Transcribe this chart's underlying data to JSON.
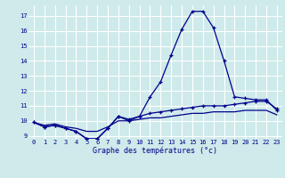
{
  "xlabel": "Graphe des températures (°c)",
  "bg_color": "#ceeaea",
  "grid_color": "#b8d8d8",
  "line_color": "#00008b",
  "hours": [
    0,
    1,
    2,
    3,
    4,
    5,
    6,
    7,
    8,
    9,
    10,
    11,
    12,
    13,
    14,
    15,
    16,
    17,
    18,
    19,
    20,
    21,
    22,
    23
  ],
  "line1": [
    9.9,
    9.6,
    9.7,
    9.5,
    9.3,
    8.8,
    8.8,
    9.5,
    10.3,
    10.0,
    10.3,
    11.6,
    12.6,
    14.4,
    16.1,
    17.3,
    17.3,
    16.2,
    14.0,
    11.6,
    11.5,
    11.4,
    11.4,
    10.7
  ],
  "line2": [
    9.9,
    9.6,
    9.7,
    9.5,
    9.3,
    8.8,
    8.8,
    9.5,
    10.3,
    10.1,
    10.3,
    10.5,
    10.6,
    10.7,
    10.8,
    10.9,
    11.0,
    11.0,
    11.0,
    11.1,
    11.2,
    11.3,
    11.3,
    10.8
  ],
  "line3": [
    9.9,
    9.7,
    9.8,
    9.6,
    9.5,
    9.3,
    9.3,
    9.6,
    10.0,
    10.0,
    10.1,
    10.2,
    10.2,
    10.3,
    10.4,
    10.5,
    10.5,
    10.6,
    10.6,
    10.6,
    10.7,
    10.7,
    10.7,
    10.4
  ],
  "ylim": [
    8.8,
    17.7
  ],
  "yticks": [
    9,
    10,
    11,
    12,
    13,
    14,
    15,
    16,
    17
  ],
  "xtick_labels": [
    "0",
    "1",
    "2",
    "3",
    "4",
    "5",
    "6",
    "7",
    "8",
    "9",
    "10",
    "11",
    "12",
    "13",
    "14",
    "15",
    "16",
    "17",
    "18",
    "19",
    "20",
    "21",
    "22",
    "23"
  ]
}
